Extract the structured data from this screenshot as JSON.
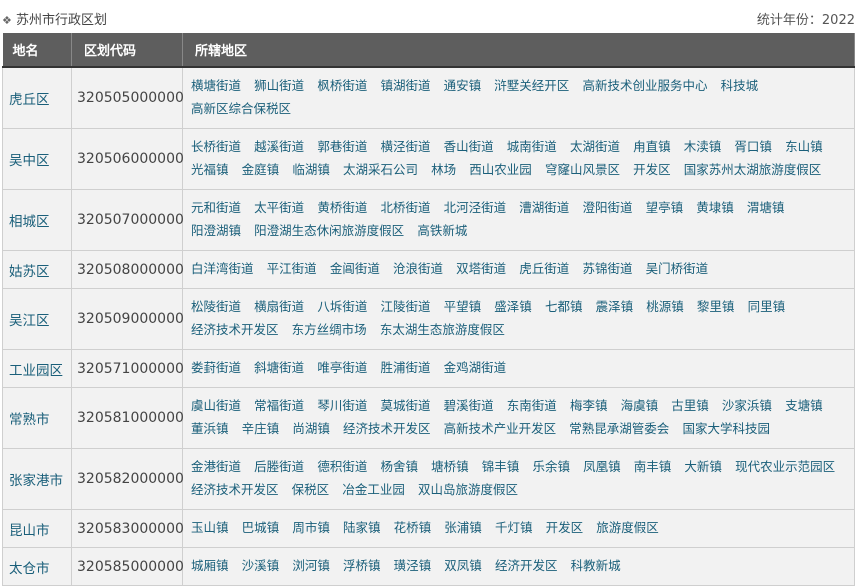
{
  "header": {
    "title": "苏州市行政区划",
    "title_icon": "diamond-icon",
    "year_label": "统计年份：2022"
  },
  "colors": {
    "header_bg": "#5e5e5e",
    "row_bg": "#f2f2f2",
    "link": "#1a5f7a"
  },
  "table": {
    "columns": [
      "地名",
      "区划代码",
      "所辖地区"
    ],
    "rows": [
      {
        "name": "虎丘区",
        "code": "320505000000",
        "areas": [
          "横塘街道",
          "狮山街道",
          "枫桥街道",
          "镇湖街道",
          "通安镇",
          "浒墅关经开区",
          "高新技术创业服务中心",
          "科技城",
          "高新区综合保税区"
        ]
      },
      {
        "name": "吴中区",
        "code": "320506000000",
        "areas": [
          "长桥街道",
          "越溪街道",
          "郭巷街道",
          "横泾街道",
          "香山街道",
          "城南街道",
          "太湖街道",
          "甪直镇",
          "木渎镇",
          "胥口镇",
          "东山镇",
          "光福镇",
          "金庭镇",
          "临湖镇",
          "太湖采石公司",
          "林场",
          "西山农业园",
          "穹窿山风景区",
          "开发区",
          "国家苏州太湖旅游度假区"
        ]
      },
      {
        "name": "相城区",
        "code": "320507000000",
        "areas": [
          "元和街道",
          "太平街道",
          "黄桥街道",
          "北桥街道",
          "北河泾街道",
          "漕湖街道",
          "澄阳街道",
          "望亭镇",
          "黄埭镇",
          "渭塘镇",
          "阳澄湖镇",
          "阳澄湖生态休闲旅游度假区",
          "高铁新城"
        ]
      },
      {
        "name": "姑苏区",
        "code": "320508000000",
        "areas": [
          "白洋湾街道",
          "平江街道",
          "金阊街道",
          "沧浪街道",
          "双塔街道",
          "虎丘街道",
          "苏锦街道",
          "吴门桥街道"
        ]
      },
      {
        "name": "吴江区",
        "code": "320509000000",
        "areas": [
          "松陵街道",
          "横扇街道",
          "八坼街道",
          "江陵街道",
          "平望镇",
          "盛泽镇",
          "七都镇",
          "震泽镇",
          "桃源镇",
          "黎里镇",
          "同里镇",
          "经济技术开发区",
          "东方丝绸市场",
          "东太湖生态旅游度假区"
        ]
      },
      {
        "name": "工业园区",
        "code": "320571000000",
        "areas": [
          "娄葑街道",
          "斜塘街道",
          "唯亭街道",
          "胜浦街道",
          "金鸡湖街道"
        ]
      },
      {
        "name": "常熟市",
        "code": "320581000000",
        "areas": [
          "虞山街道",
          "常福街道",
          "琴川街道",
          "莫城街道",
          "碧溪街道",
          "东南街道",
          "梅李镇",
          "海虞镇",
          "古里镇",
          "沙家浜镇",
          "支塘镇",
          "董浜镇",
          "辛庄镇",
          "尚湖镇",
          "经济技术开发区",
          "高新技术产业开发区",
          "常熟昆承湖管委会",
          "国家大学科技园"
        ]
      },
      {
        "name": "张家港市",
        "code": "320582000000",
        "areas": [
          "金港街道",
          "后塍街道",
          "德积街道",
          "杨舍镇",
          "塘桥镇",
          "锦丰镇",
          "乐余镇",
          "凤凰镇",
          "南丰镇",
          "大新镇",
          "现代农业示范园区",
          "经济技术开发区",
          "保税区",
          "冶金工业园",
          "双山岛旅游度假区"
        ]
      },
      {
        "name": "昆山市",
        "code": "320583000000",
        "areas": [
          "玉山镇",
          "巴城镇",
          "周市镇",
          "陆家镇",
          "花桥镇",
          "张浦镇",
          "千灯镇",
          "开发区",
          "旅游度假区"
        ]
      },
      {
        "name": "太仓市",
        "code": "320585000000",
        "areas": [
          "城厢镇",
          "沙溪镇",
          "浏河镇",
          "浮桥镇",
          "璜泾镇",
          "双凤镇",
          "经济开发区",
          "科教新城"
        ]
      }
    ]
  }
}
